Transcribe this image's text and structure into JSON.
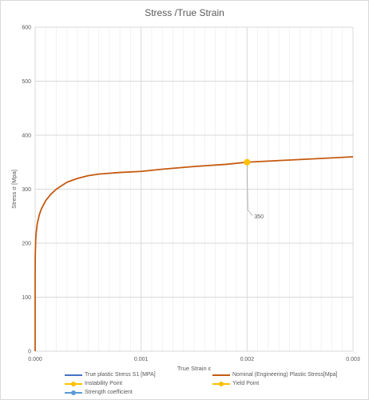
{
  "chart_data": {
    "type": "line",
    "title": "Stress /True Strain",
    "xlabel": "True Strain ε",
    "ylabel": "Stress σ [Mpa]",
    "xlim": [
      0,
      0.003
    ],
    "ylim": [
      0,
      600
    ],
    "x_ticks": [
      "0.000",
      "0.001",
      "0.002",
      "0.003"
    ],
    "y_ticks": [
      "0",
      "100",
      "200",
      "300",
      "400",
      "500",
      "600"
    ],
    "grid": true,
    "legend_position": "bottom",
    "series": [
      {
        "name": "True plastic Stress S1 [MPA]",
        "color": "#4472c4",
        "marker": false,
        "x": [],
        "y": []
      },
      {
        "name": "Nominal (Engineering) Plastic Stress[Mpa]",
        "color": "#c55a11",
        "marker": false,
        "x": [
          0,
          1e-08,
          1e-07,
          1e-06,
          5e-06,
          1e-05,
          2e-05,
          4e-05,
          6e-05,
          0.0001,
          0.00015,
          0.0002,
          0.0003,
          0.0004,
          0.0005,
          0.0006,
          0.0008,
          0.001,
          0.0012,
          0.0015,
          0.0018,
          0.002,
          0.0022,
          0.0025,
          0.0028,
          0.003
        ],
        "y": [
          0,
          108,
          137,
          174,
          205,
          220,
          236,
          253,
          264,
          279,
          291,
          300,
          313,
          320,
          325,
          328,
          331,
          333,
          337,
          342,
          346,
          350,
          352,
          355,
          358,
          360
        ]
      },
      {
        "name": "Instability Point",
        "color": "#ffc000",
        "marker": true,
        "x": [],
        "y": []
      },
      {
        "name": "Yield Point",
        "color": "#ffc000",
        "marker": true,
        "x": [
          0.002
        ],
        "y": [
          350
        ]
      },
      {
        "name": "Strength coefficient",
        "color": "#5b9bd5",
        "marker": true,
        "x": [],
        "y": []
      }
    ],
    "annotations": [
      {
        "text": "350",
        "x": 0.002,
        "y": 350
      }
    ]
  }
}
